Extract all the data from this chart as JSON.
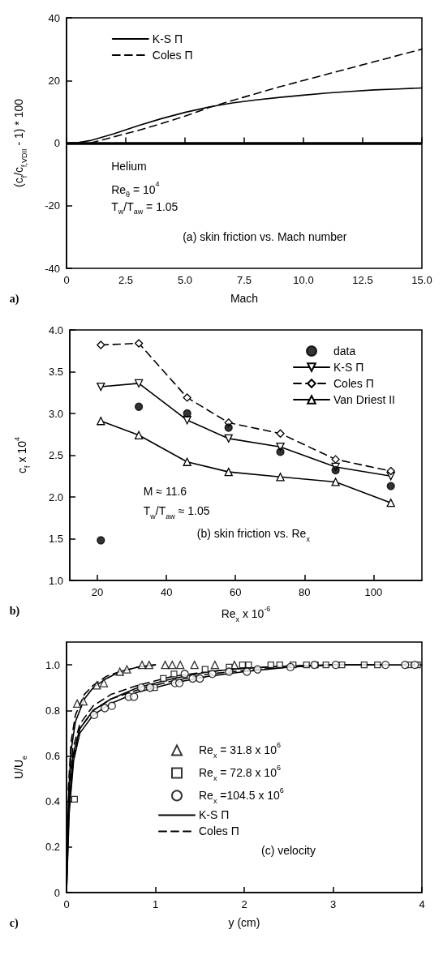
{
  "chart_data": [
    {
      "type": "line",
      "xlabel": "Mach",
      "ylabel": "(c$_{f}$/c$_{f,VDII}$ - 1) * 100",
      "xlim": [
        0,
        15
      ],
      "ylim": [
        -40,
        40
      ],
      "xticks": [
        0,
        {
          "value": 2.5,
          "label": "2.5"
        },
        {
          "value": 5,
          "label": "5.0"
        },
        {
          "value": 7.5,
          "label": "7.5"
        },
        {
          "value": 10,
          "label": "10.0"
        },
        {
          "value": 12.5,
          "label": "12.5"
        },
        {
          "value": 15,
          "label": "15.0"
        }
      ],
      "yticks": [
        -40,
        -20,
        0,
        20,
        40
      ],
      "grid": false,
      "legend": "top left",
      "marker": "none",
      "x": [
        0,
        0.5,
        1,
        2,
        3,
        4,
        5,
        6,
        7,
        8,
        9,
        10,
        11,
        12,
        13,
        14,
        15
      ],
      "series": [
        {
          "name": "K-S Π",
          "color": "#000000",
          "line_style": "solid",
          "values": [
            0,
            0.2,
            0.8,
            3,
            5.5,
            7.8,
            9.8,
            11.5,
            12.8,
            13.8,
            14.6,
            15.3,
            16,
            16.5,
            17,
            17.3,
            17.6
          ]
        },
        {
          "name": "Coles Π",
          "color": "#000000",
          "line_style": "dashed",
          "values": [
            0,
            0,
            0,
            2,
            4,
            6.2,
            8.6,
            11.3,
            13.6,
            15.8,
            18,
            20,
            22,
            24,
            26,
            28,
            30
          ]
        }
      ],
      "ref_lines": [
        {
          "axis": "y",
          "value": 0,
          "color": "#000000",
          "line_style": "solid"
        }
      ],
      "annotations": [
        "Helium",
        "Re$_{θ}$ = 10$^{4}$",
        "T$_{w}$/T$_{aw}$ = 1.05",
        "(a) skin friction vs. Mach number",
        "a)"
      ]
    },
    {
      "type": "line",
      "xlabel": "Re$_{x}$ x 10$^{-6}$",
      "ylabel": "c$_{f}$ x 10$^{4}$",
      "xlim": [
        12,
        114
      ],
      "ylim": [
        1,
        4
      ],
      "xticks": [
        20,
        40,
        60,
        80,
        100
      ],
      "yticks": [
        {
          "value": 1,
          "label": "1.0"
        },
        1.5,
        {
          "value": 2,
          "label": "2.0"
        },
        2.5,
        {
          "value": 3,
          "label": "3.0"
        },
        3.5,
        {
          "value": 4,
          "label": "4.0"
        }
      ],
      "grid": false,
      "legend": "top right",
      "x": [
        21,
        32,
        46,
        58,
        73,
        89,
        105
      ],
      "series": [
        {
          "name": "data",
          "type": "scatter",
          "marker": "circle",
          "color": "#000000",
          "values": [
            1.48,
            3.08,
            3.0,
            2.83,
            2.54,
            2.32,
            2.13
          ]
        },
        {
          "name": "K-S Π",
          "marker": "triangle-down",
          "line_style": "solid",
          "color": "#000000",
          "values": [
            3.32,
            3.36,
            2.92,
            2.7,
            2.6,
            2.36,
            2.25
          ]
        },
        {
          "name": "Coles Π",
          "marker": "diamond",
          "line_style": "dashed",
          "color": "#000000",
          "values": [
            3.82,
            3.84,
            3.19,
            2.89,
            2.76,
            2.45,
            2.31
          ]
        },
        {
          "name": "Van Driest II",
          "marker": "triangle",
          "line_style": "solid",
          "color": "#000000",
          "values": [
            2.91,
            2.74,
            2.42,
            2.3,
            2.24,
            2.18,
            1.93
          ]
        }
      ],
      "annotations": [
        "M ≈ 11.6",
        "T$_{w}$/T$_{aw}$ ≈ 1.05",
        "(b) skin friction vs. Re$_{x}$",
        "b)"
      ]
    },
    {
      "type": "scatter",
      "xlabel": "y (cm)",
      "ylabel": "U/U$_{e}$",
      "xlim": [
        0,
        4
      ],
      "ylim": [
        0,
        1.1
      ],
      "xticks": [
        0,
        1,
        2,
        3,
        4
      ],
      "yticks": [
        0,
        0.2,
        0.4,
        0.6,
        0.8,
        {
          "value": 1,
          "label": "1.0"
        }
      ],
      "grid": false,
      "legend": "center",
      "series": [
        {
          "name": "Re$_{x}$ = 31.8 x 10$^{6}$",
          "marker": "triangle",
          "color": "#000000",
          "x": [
            0.12,
            0.19,
            0.34,
            0.42,
            0.6,
            0.68,
            0.85,
            0.93,
            1.11,
            1.19,
            1.28,
            1.44,
            1.67,
            1.89
          ],
          "values": [
            0.83,
            0.84,
            0.91,
            0.92,
            0.97,
            0.98,
            1.0,
            1.0,
            1.0,
            1.0,
            1.0,
            1.0,
            1.0,
            1.0
          ]
        },
        {
          "name": "Re$_{x}$ = 72.8 x 10$^{6}$",
          "marker": "square",
          "color": "#000000",
          "x": [
            0.09,
            0.99,
            1.09,
            1.21,
            1.56,
            1.83,
            1.98,
            2.05,
            2.3,
            2.4,
            2.55,
            2.7,
            2.8,
            2.92,
            3.1,
            3.35,
            3.5,
            3.85,
            3.95
          ],
          "values": [
            0.41,
            0.9,
            0.94,
            0.96,
            0.98,
            0.99,
            1.0,
            1.0,
            1.0,
            1.0,
            1.0,
            1.0,
            1.0,
            1.0,
            1.0,
            1.0,
            1.0,
            1.0,
            1.0
          ]
        },
        {
          "name": "Re$_{x}$ =104.5 x 10$^{6}$",
          "marker": "circle",
          "color": "#000000",
          "x": [
            0.31,
            0.43,
            0.51,
            0.7,
            0.76,
            0.84,
            0.94,
            1.22,
            1.27,
            1.33,
            1.42,
            1.5,
            1.64,
            1.83,
            2.03,
            2.15,
            2.52,
            2.79,
            3.03,
            3.59,
            3.81,
            3.92
          ],
          "values": [
            0.78,
            0.81,
            0.82,
            0.86,
            0.86,
            0.9,
            0.9,
            0.92,
            0.92,
            0.96,
            0.94,
            0.94,
            0.96,
            0.97,
            0.97,
            0.98,
            0.99,
            1.0,
            1.0,
            1.0,
            1.0,
            1.0
          ]
        },
        {
          "name": "K-S Π",
          "type": "line",
          "marker": "none",
          "line_style": "solid",
          "color": "#000000",
          "x": [
            0,
            0.02,
            0.05,
            0.1,
            0.2,
            0.3,
            0.45,
            0.6,
            0.8,
            1.0
          ],
          "values": [
            0,
            0.4,
            0.62,
            0.75,
            0.85,
            0.9,
            0.94,
            0.97,
            0.99,
            1.0
          ]
        },
        {
          "name": "Coles Π",
          "type": "line",
          "marker": "none",
          "line_style": "dashed",
          "color": "#000000",
          "x": [
            0.02,
            0.05,
            0.1,
            0.2,
            0.3,
            0.45,
            0.6,
            0.8,
            1.0
          ],
          "values": [
            0.45,
            0.66,
            0.78,
            0.87,
            0.91,
            0.95,
            0.97,
            0.99,
            1.0
          ]
        },
        {
          "type": "line",
          "marker": "none",
          "line_style": "solid",
          "color": "#000000",
          "x": [
            0,
            0.03,
            0.07,
            0.15,
            0.3,
            0.5,
            0.8,
            1.2,
            1.6,
            2.0,
            2.5,
            3.0,
            4.0
          ],
          "values": [
            0,
            0.4,
            0.6,
            0.72,
            0.8,
            0.85,
            0.9,
            0.94,
            0.97,
            0.985,
            0.995,
            1.0,
            1.0
          ]
        },
        {
          "type": "line",
          "marker": "none",
          "line_style": "dashed",
          "color": "#000000",
          "x": [
            0.03,
            0.07,
            0.15,
            0.3,
            0.5,
            0.8,
            1.2,
            1.6,
            2.0,
            2.5,
            3.0
          ],
          "values": [
            0.44,
            0.63,
            0.74,
            0.82,
            0.87,
            0.91,
            0.95,
            0.97,
            0.985,
            0.995,
            1.0
          ]
        },
        {
          "type": "line",
          "marker": "none",
          "line_style": "solid",
          "color": "#000000",
          "x": [
            0,
            0.03,
            0.08,
            0.15,
            0.3,
            0.5,
            0.8,
            1.2,
            1.6,
            2.0,
            2.5,
            3.0,
            3.6
          ],
          "values": [
            0,
            0.35,
            0.58,
            0.7,
            0.78,
            0.83,
            0.88,
            0.92,
            0.95,
            0.97,
            0.99,
            1.0,
            1.0
          ]
        },
        {
          "type": "line",
          "marker": "none",
          "line_style": "dashed",
          "color": "#000000",
          "x": [
            0.03,
            0.08,
            0.15,
            0.3,
            0.5,
            0.8,
            1.2,
            1.6,
            2.0,
            2.5,
            3.0
          ],
          "values": [
            0.38,
            0.6,
            0.72,
            0.8,
            0.85,
            0.89,
            0.93,
            0.96,
            0.975,
            0.99,
            1.0
          ]
        }
      ],
      "annotations": [
        "(c) velocity",
        "c)"
      ]
    }
  ]
}
